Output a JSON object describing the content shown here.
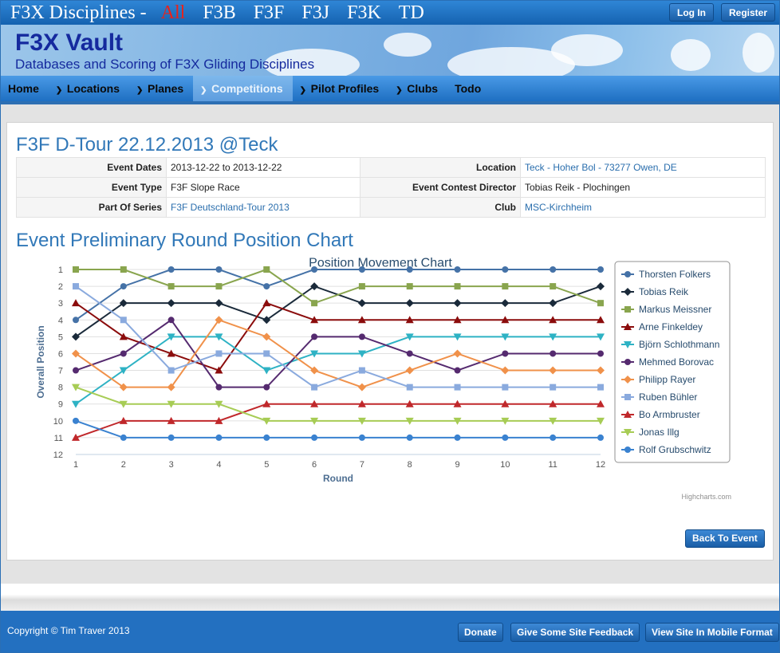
{
  "topbar": {
    "label": "F3X Disciplines -",
    "disciplines": [
      "All",
      "F3B",
      "F3F",
      "F3J",
      "F3K",
      "TD"
    ],
    "login": "Log In",
    "register": "Register"
  },
  "banner": {
    "title": "F3X Vault",
    "subtitle": "Databases and Scoring of F3X Gliding Disciplines"
  },
  "nav": [
    "Home",
    "Locations",
    "Planes",
    "Competitions",
    "Pilot Profiles",
    "Clubs",
    "Todo"
  ],
  "event": {
    "title": "F3F D-Tour 22.12.2013 @Teck",
    "rows": [
      {
        "label": "Event Dates",
        "value": "2013-12-22 to 2013-12-22",
        "label2": "Location",
        "value2": "Teck - Hoher Bol - 73277 Owen, DE"
      },
      {
        "label": "Event Type",
        "value": "F3F Slope Race",
        "label2": "Event Contest Director",
        "value2": "Tobias Reik - Plochingen"
      },
      {
        "label": "Part Of Series",
        "value": "F3F Deutschland-Tour 2013",
        "label2": "Club",
        "value2": "MSC-Kirchheim"
      }
    ]
  },
  "section_title": "Event Preliminary Round Position Chart",
  "back_button": "Back To Event",
  "chart_data": {
    "type": "line",
    "title": "Position Movement Chart",
    "xlabel": "Round",
    "ylabel": "Overall Position",
    "x": [
      1,
      2,
      3,
      4,
      5,
      6,
      7,
      8,
      9,
      10,
      11,
      12
    ],
    "ylim": [
      1,
      12
    ],
    "y_reversed": true,
    "legend": "right",
    "credit": "Highcharts.com",
    "series": [
      {
        "name": "Thorsten Folkers",
        "color": "#4572a7",
        "marker": "circle",
        "values": [
          4,
          2,
          1,
          1,
          2,
          1,
          1,
          1,
          1,
          1,
          1,
          1
        ]
      },
      {
        "name": "Tobias Reik",
        "color": "#1a2a3a",
        "marker": "diamond",
        "values": [
          5,
          3,
          3,
          3,
          4,
          2,
          3,
          3,
          3,
          3,
          3,
          2
        ]
      },
      {
        "name": "Markus Meissner",
        "color": "#89a54e",
        "marker": "square",
        "values": [
          1,
          1,
          2,
          2,
          1,
          3,
          2,
          2,
          2,
          2,
          2,
          3
        ]
      },
      {
        "name": "Arne Finkeldey",
        "color": "#8b0c0c",
        "marker": "triangle",
        "values": [
          3,
          5,
          6,
          7,
          3,
          4,
          4,
          4,
          4,
          4,
          4,
          4
        ]
      },
      {
        "name": "Björn Schlothmann",
        "color": "#2eb2c4",
        "marker": "triangle-down",
        "values": [
          9,
          7,
          5,
          5,
          7,
          6,
          6,
          5,
          5,
          5,
          5,
          5
        ]
      },
      {
        "name": "Mehmed Borovac",
        "color": "#552a6f",
        "marker": "circle",
        "values": [
          7,
          6,
          4,
          8,
          8,
          5,
          5,
          6,
          7,
          6,
          6,
          6
        ]
      },
      {
        "name": "Philipp Rayer",
        "color": "#f0914a",
        "marker": "diamond",
        "values": [
          6,
          8,
          8,
          4,
          5,
          7,
          8,
          7,
          6,
          7,
          7,
          7
        ]
      },
      {
        "name": "Ruben Bühler",
        "color": "#8aaade",
        "marker": "square",
        "values": [
          2,
          4,
          7,
          6,
          6,
          8,
          7,
          8,
          8,
          8,
          8,
          8
        ]
      },
      {
        "name": "Bo Armbruster",
        "color": "#c0282b",
        "marker": "triangle",
        "values": [
          11,
          10,
          10,
          10,
          9,
          9,
          9,
          9,
          9,
          9,
          9,
          9
        ]
      },
      {
        "name": "Jonas Illg",
        "color": "#a7cc55",
        "marker": "triangle-down",
        "values": [
          8,
          9,
          9,
          9,
          10,
          10,
          10,
          10,
          10,
          10,
          10,
          10
        ]
      },
      {
        "name": "Rolf Grubschwitz",
        "color": "#3a82d0",
        "marker": "circle",
        "values": [
          10,
          11,
          11,
          11,
          11,
          11,
          11,
          11,
          11,
          11,
          11,
          11
        ]
      }
    ]
  },
  "footer": {
    "copyright": "Copyright © Tim Traver 2013",
    "donate": "Donate",
    "feedback": "Give Some Site Feedback",
    "mobile": "View Site In Mobile Format"
  }
}
